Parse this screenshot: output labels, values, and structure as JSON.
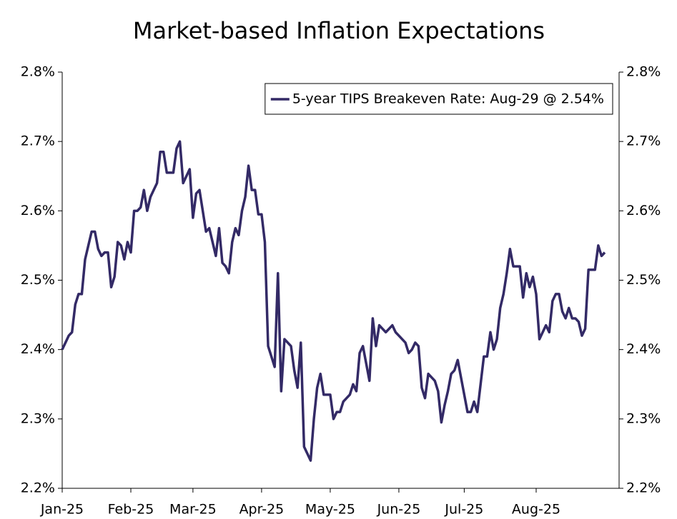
{
  "chart_data": {
    "type": "line",
    "title": "Market-based Inflation Expectations",
    "categories": [
      "Jan-25",
      null,
      null,
      null,
      null,
      null,
      null,
      null,
      null,
      null,
      null,
      null,
      null,
      null,
      null,
      null,
      null,
      null,
      null,
      null,
      null,
      "Feb-25",
      null,
      null,
      null,
      null,
      null,
      null,
      null,
      null,
      null,
      null,
      null,
      null,
      null,
      null,
      null,
      null,
      null,
      null,
      "Mar-25",
      null,
      null,
      null,
      null,
      null,
      null,
      null,
      null,
      null,
      null,
      null,
      null,
      null,
      null,
      null,
      null,
      null,
      null,
      null,
      null,
      "Apr-25",
      null,
      null,
      null,
      null,
      null,
      null,
      null,
      null,
      null,
      null,
      null,
      null,
      null,
      null,
      null,
      null,
      null,
      null,
      null,
      null,
      "May-25",
      null,
      null,
      null,
      null,
      null,
      null,
      null,
      null,
      null,
      null,
      null,
      null,
      null,
      null,
      null,
      null,
      null,
      null,
      null,
      null,
      "Jun-25",
      null,
      null,
      null,
      null,
      null,
      null,
      null,
      null,
      null,
      null,
      null,
      null,
      null,
      null,
      null,
      null,
      null,
      null,
      null,
      "Jul-25",
      null,
      null,
      null,
      null,
      null,
      null,
      null,
      null,
      null,
      null,
      null,
      null,
      null,
      null,
      null,
      null,
      null,
      null,
      null,
      null,
      null,
      "Aug-25",
      null,
      null,
      null,
      null,
      null,
      null,
      null,
      null,
      null,
      null,
      null,
      null,
      null,
      null,
      null,
      null,
      null,
      null,
      null,
      null,
      null
    ],
    "series": [
      {
        "name": "5-year TIPS Breakeven Rate: Aug-29 @ 2.54%",
        "color": "#332a66",
        "values": [
          2.4,
          2.41,
          2.42,
          2.425,
          2.465,
          2.48,
          2.48,
          2.53,
          2.55,
          2.57,
          2.57,
          2.545,
          2.535,
          2.54,
          2.54,
          2.49,
          2.505,
          2.555,
          2.55,
          2.53,
          2.555,
          2.54,
          2.6,
          2.6,
          2.605,
          2.63,
          2.6,
          2.62,
          2.63,
          2.64,
          2.685,
          2.685,
          2.655,
          2.655,
          2.655,
          2.69,
          2.7,
          2.64,
          2.65,
          2.66,
          2.59,
          2.625,
          2.63,
          2.6,
          2.57,
          2.575,
          2.555,
          2.535,
          2.575,
          2.525,
          2.52,
          2.51,
          2.555,
          2.575,
          2.565,
          2.6,
          2.62,
          2.665,
          2.63,
          2.63,
          2.595,
          2.595,
          2.555,
          2.405,
          2.39,
          2.375,
          2.51,
          2.34,
          2.415,
          2.41,
          2.405,
          2.37,
          2.345,
          2.41,
          2.26,
          2.25,
          2.24,
          2.3,
          2.345,
          2.365,
          2.335,
          2.335,
          2.335,
          2.3,
          2.31,
          2.31,
          2.325,
          2.33,
          2.335,
          2.35,
          2.34,
          2.395,
          2.405,
          2.38,
          2.355,
          2.445,
          2.405,
          2.435,
          2.43,
          2.425,
          2.43,
          2.435,
          2.425,
          2.42,
          2.415,
          2.41,
          2.395,
          2.4,
          2.41,
          2.405,
          2.345,
          2.33,
          2.365,
          2.36,
          2.355,
          2.34,
          2.295,
          2.32,
          2.34,
          2.365,
          2.37,
          2.385,
          2.36,
          2.335,
          2.31,
          2.31,
          2.325,
          2.31,
          2.35,
          2.39,
          2.39,
          2.425,
          2.4,
          2.415,
          2.46,
          2.48,
          2.51,
          2.545,
          2.52,
          2.52,
          2.52,
          2.475,
          2.51,
          2.49,
          2.505,
          2.48,
          2.415,
          2.425,
          2.435,
          2.425,
          2.47,
          2.48,
          2.48,
          2.455,
          2.445,
          2.46,
          2.445,
          2.445,
          2.44,
          2.42,
          2.43,
          2.515,
          2.515,
          2.515,
          2.55,
          2.535,
          2.54
        ]
      }
    ],
    "ylim": [
      2.2,
      2.8
    ],
    "yticks": [
      {
        "value": 2.2,
        "label": "2.2%"
      },
      {
        "value": 2.3,
        "label": "2.3%"
      },
      {
        "value": 2.4,
        "label": "2.4%"
      },
      {
        "value": 2.5,
        "label": "2.5%"
      },
      {
        "value": 2.6,
        "label": "2.6%"
      },
      {
        "value": 2.7,
        "label": "2.7%"
      },
      {
        "value": 2.8,
        "label": "2.8%"
      }
    ],
    "y2lim": [
      2.2,
      2.8
    ],
    "y2ticks": [
      {
        "value": 2.2,
        "label": "2.2%"
      },
      {
        "value": 2.3,
        "label": "2.3%"
      },
      {
        "value": 2.4,
        "label": "2.4%"
      },
      {
        "value": 2.5,
        "label": "2.5%"
      },
      {
        "value": 2.6,
        "label": "2.6%"
      },
      {
        "value": 2.7,
        "label": "2.7%"
      },
      {
        "value": 2.8,
        "label": "2.8%"
      }
    ],
    "legend": "upper right",
    "grid": false
  }
}
